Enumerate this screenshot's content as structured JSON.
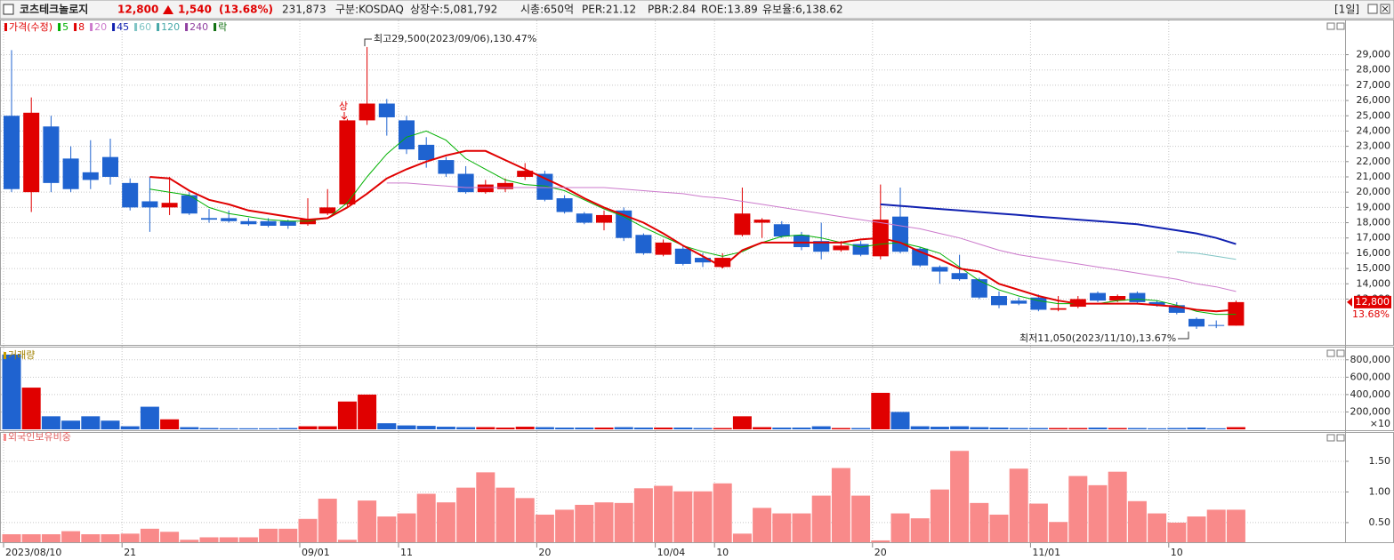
{
  "header": {
    "name": "코츠테크놀로지",
    "price": "12,800",
    "change": "1,540",
    "change_pct": "(13.68%)",
    "volume": "231,873",
    "market": "구분:KOSDAQ",
    "shares": "상장수:5,081,792",
    "cap": "시총:650억",
    "per": "PER:21.12",
    "pbr": "PBR:2.84",
    "roe": "ROE:13.89",
    "reserve": "유보율:6,138.62",
    "interval": "[1일]"
  },
  "chart_data": [
    {
      "type": "candlestick",
      "categories": [
        "2023/08/10",
        null,
        null,
        null,
        null,
        null,
        "21",
        null,
        null,
        null,
        null,
        null,
        null,
        null,
        null,
        "09/01",
        null,
        null,
        null,
        null,
        "11",
        null,
        null,
        null,
        null,
        null,
        null,
        "20",
        null,
        null,
        null,
        null,
        null,
        "10/04",
        null,
        null,
        "10",
        null,
        null,
        null,
        null,
        null,
        null,
        null,
        "20",
        null,
        null,
        null,
        null,
        null,
        null,
        null,
        "11/01",
        null,
        null,
        null,
        null,
        null,
        null,
        "10",
        null,
        null,
        null
      ],
      "up_color": "#e00000",
      "down_color": "#1f63d0",
      "ylim": [
        10000,
        31300
      ],
      "yticks": [
        {
          "value": 13000,
          "label": "13,000"
        },
        {
          "value": 14000,
          "label": "14,000"
        },
        {
          "value": 15000,
          "label": "15,000"
        },
        {
          "value": 16000,
          "label": "16,000"
        },
        {
          "value": 17000,
          "label": "17,000"
        },
        {
          "value": 18000,
          "label": "18,000"
        },
        {
          "value": 19000,
          "label": "19,000"
        },
        {
          "value": 20000,
          "label": "20,000"
        },
        {
          "value": 21000,
          "label": "21,000"
        },
        {
          "value": 22000,
          "label": "22,000"
        },
        {
          "value": 23000,
          "label": "23,000"
        },
        {
          "value": 24000,
          "label": "24,000"
        },
        {
          "value": 25000,
          "label": "25,000"
        },
        {
          "value": 26000,
          "label": "26,000"
        },
        {
          "value": 27000,
          "label": "27,000"
        },
        {
          "value": 28000,
          "label": "28,000"
        },
        {
          "value": 29000,
          "label": "29,000"
        }
      ],
      "grid": true,
      "series": [
        {
          "name": "가격(수정)",
          "color": "#e00000",
          "open": [
            25000,
            20000,
            24300,
            22200,
            21300,
            22300,
            20600,
            19400,
            19000,
            19800,
            18300,
            18300,
            18100,
            18100,
            18100,
            17900,
            18600,
            19200,
            24700,
            25800,
            24700,
            23100,
            22100,
            21200,
            20000,
            20200,
            21000,
            21200,
            19600,
            18600,
            18000,
            18800,
            17200,
            15900,
            16300,
            15700,
            15100,
            17200,
            18000,
            17900,
            17200,
            16800,
            16200,
            16600,
            15800,
            18400,
            16300,
            15100,
            14700,
            14300,
            13200,
            12900,
            13100,
            12300,
            12500,
            13400,
            12900,
            13400,
            12800,
            12600,
            11700,
            11300,
            11260
          ],
          "high": [
            29300,
            26200,
            25000,
            23000,
            23400,
            23500,
            20900,
            21000,
            21000,
            20000,
            18900,
            18800,
            18300,
            18300,
            18200,
            19600,
            20200,
            24800,
            29500,
            26100,
            25000,
            23600,
            22300,
            21700,
            20800,
            20900,
            21900,
            21400,
            19800,
            18700,
            18800,
            19000,
            17300,
            16900,
            16500,
            16000,
            16000,
            20300,
            18300,
            18100,
            17400,
            18000,
            16800,
            16800,
            20500,
            20300,
            16400,
            15200,
            15900,
            14400,
            13500,
            13100,
            13300,
            13200,
            13200,
            13500,
            13300,
            13500,
            12900,
            12800,
            11800,
            11600,
            12900
          ],
          "low": [
            20000,
            18700,
            20000,
            20000,
            20200,
            20500,
            18800,
            17400,
            18500,
            18500,
            18000,
            18000,
            17800,
            17700,
            17600,
            17800,
            18500,
            19000,
            24400,
            23700,
            22500,
            21600,
            21000,
            19900,
            19900,
            20000,
            20800,
            19400,
            18600,
            17900,
            17500,
            16800,
            15900,
            15800,
            15200,
            15100,
            15000,
            17100,
            17000,
            17000,
            16200,
            15600,
            16100,
            15800,
            15600,
            16000,
            15100,
            14000,
            14200,
            13000,
            12400,
            12600,
            12200,
            12200,
            12400,
            12800,
            12800,
            12700,
            12500,
            12000,
            11050,
            11100,
            11260
          ],
          "close": [
            20200,
            25200,
            20600,
            20200,
            20800,
            21000,
            19000,
            19000,
            19300,
            18600,
            18200,
            18100,
            17900,
            17800,
            17800,
            18200,
            19000,
            24700,
            25800,
            24900,
            22800,
            22100,
            21200,
            20000,
            20500,
            20600,
            21400,
            19500,
            18700,
            18000,
            18500,
            17000,
            16000,
            16700,
            15300,
            15400,
            15700,
            18600,
            18200,
            17100,
            16400,
            16100,
            16500,
            15900,
            18200,
            16100,
            15200,
            14800,
            14300,
            13100,
            12600,
            12700,
            12300,
            12400,
            13000,
            12900,
            13200,
            12800,
            12600,
            12100,
            11200,
            11260,
            12800
          ]
        },
        {
          "name": "5",
          "color": "#00b000",
          "values": [
            null,
            null,
            null,
            null,
            null,
            null,
            null,
            20200,
            20000,
            19800,
            19000,
            18600,
            18400,
            18200,
            18100,
            18100,
            18300,
            19300,
            21000,
            22500,
            23600,
            24000,
            23400,
            22200,
            21500,
            20800,
            20500,
            20400,
            20100,
            19500,
            18900,
            18400,
            17700,
            17100,
            16500,
            16100,
            15800,
            16100,
            16700,
            17100,
            17200,
            17000,
            16700,
            16400,
            16600,
            16700,
            16400,
            16000,
            15100,
            14200,
            13600,
            13200,
            12900,
            12700,
            12700,
            12700,
            12900,
            13000,
            12900,
            12600,
            12200,
            12000,
            12000
          ]
        },
        {
          "name": "8",
          "color": "#e00000",
          "values": [
            null,
            null,
            null,
            null,
            null,
            null,
            null,
            21000,
            20900,
            20100,
            19500,
            19200,
            18800,
            18600,
            18400,
            18200,
            18300,
            19000,
            19900,
            20900,
            21500,
            22000,
            22400,
            22700,
            22700,
            22100,
            21500,
            20900,
            20300,
            19600,
            19000,
            18500,
            18000,
            17300,
            16500,
            15800,
            15100,
            16200,
            16700,
            16700,
            16700,
            16700,
            16700,
            16900,
            17000,
            16700,
            16100,
            15600,
            15000,
            14800,
            14000,
            13600,
            13200,
            12900,
            12700,
            12700,
            12700,
            12700,
            12600,
            12500,
            12300,
            12200,
            12300
          ]
        },
        {
          "name": "20",
          "color": "#cc7acc",
          "values": [
            null,
            null,
            null,
            null,
            null,
            null,
            null,
            null,
            null,
            null,
            null,
            null,
            null,
            null,
            null,
            null,
            null,
            null,
            null,
            20600,
            20600,
            20500,
            20400,
            20300,
            20300,
            20300,
            20300,
            20300,
            20300,
            20300,
            20300,
            20200,
            20100,
            20000,
            19900,
            19700,
            19600,
            19400,
            19200,
            19000,
            18800,
            18600,
            18400,
            18200,
            18000,
            17800,
            17600,
            17300,
            17000,
            16600,
            16200,
            15900,
            15700,
            15500,
            15300,
            15100,
            14900,
            14700,
            14500,
            14300,
            14000,
            13800,
            13500
          ]
        },
        {
          "name": "45",
          "color": "#1020b0",
          "values": [
            null,
            null,
            null,
            null,
            null,
            null,
            null,
            null,
            null,
            null,
            null,
            null,
            null,
            null,
            null,
            null,
            null,
            null,
            null,
            null,
            null,
            null,
            null,
            null,
            null,
            null,
            null,
            null,
            null,
            null,
            null,
            null,
            null,
            null,
            null,
            null,
            null,
            null,
            null,
            null,
            null,
            null,
            null,
            null,
            19200,
            19100,
            19000,
            18900,
            18800,
            18700,
            18600,
            18500,
            18400,
            18300,
            18200,
            18100,
            18000,
            17900,
            17700,
            17500,
            17300,
            17000,
            16600
          ]
        },
        {
          "name": "60",
          "color": "#7fc4c4",
          "values": [
            null,
            null,
            null,
            null,
            null,
            null,
            null,
            null,
            null,
            null,
            null,
            null,
            null,
            null,
            null,
            null,
            null,
            null,
            null,
            null,
            null,
            null,
            null,
            null,
            null,
            null,
            null,
            null,
            null,
            null,
            null,
            null,
            null,
            null,
            null,
            null,
            null,
            null,
            null,
            null,
            null,
            null,
            null,
            null,
            null,
            null,
            null,
            null,
            null,
            null,
            null,
            null,
            null,
            null,
            null,
            null,
            null,
            null,
            null,
            16100,
            16000,
            15800,
            15600
          ]
        },
        {
          "name": "120",
          "color": "#46a8a8"
        },
        {
          "name": "240",
          "color": "#9040a0"
        },
        {
          "name": "락",
          "color": "#107010"
        }
      ],
      "annotations": [
        {
          "text": "최고29,500(2023/09/06),130.47%"
        },
        {
          "text": "최저11,050(2023/11/10),13.67%"
        },
        {
          "text": "상"
        }
      ],
      "last_price_label": "12,800",
      "last_change_label": "13.68%"
    },
    {
      "type": "bar",
      "title": "거래량",
      "multiplier_label": "×10",
      "values": [
        860000,
        480000,
        150000,
        100000,
        150000,
        100000,
        35000,
        260000,
        115000,
        25000,
        15000,
        12000,
        12000,
        12000,
        15000,
        35000,
        35000,
        320000,
        400000,
        70000,
        45000,
        40000,
        30000,
        25000,
        25000,
        20000,
        30000,
        25000,
        20000,
        20000,
        20000,
        25000,
        20000,
        20000,
        20000,
        15000,
        15000,
        150000,
        25000,
        20000,
        20000,
        35000,
        15000,
        15000,
        420000,
        200000,
        35000,
        30000,
        35000,
        25000,
        20000,
        15000,
        15000,
        15000,
        15000,
        20000,
        15000,
        15000,
        12000,
        15000,
        20000,
        12000,
        25000
      ],
      "ylim": [
        0,
        900000
      ],
      "yticks": [
        {
          "value": 200000,
          "label": "200,000"
        },
        {
          "value": 400000,
          "label": "400,000"
        },
        {
          "value": 600000,
          "label": "600,000"
        },
        {
          "value": 800000,
          "label": "800,000"
        }
      ],
      "grid": true
    },
    {
      "type": "bar",
      "title": "외국인보유비중",
      "color": "#f98a8a",
      "values": [
        0.31,
        0.31,
        0.31,
        0.36,
        0.31,
        0.31,
        0.32,
        0.4,
        0.35,
        0.22,
        0.26,
        0.26,
        0.26,
        0.4,
        0.4,
        0.56,
        0.89,
        0.22,
        0.86,
        0.6,
        0.65,
        0.97,
        0.83,
        1.07,
        1.32,
        1.07,
        0.9,
        0.63,
        0.71,
        0.79,
        0.83,
        0.82,
        1.06,
        1.1,
        1.01,
        1.01,
        1.14,
        0.32,
        0.74,
        0.65,
        0.65,
        0.94,
        1.39,
        0.94,
        0.21,
        0.65,
        0.57,
        1.04,
        1.67,
        0.82,
        0.63,
        1.38,
        0.81,
        0.51,
        1.26,
        1.11,
        1.33,
        0.85,
        0.65,
        0.5,
        0.6,
        0.71,
        0.71
      ],
      "ylim": [
        0.18,
        1.92
      ],
      "yticks": [
        {
          "value": 0.5,
          "label": "0.50"
        },
        {
          "value": 1.0,
          "label": "1.00"
        },
        {
          "value": 1.5,
          "label": "1.50"
        }
      ],
      "grid": true
    }
  ]
}
